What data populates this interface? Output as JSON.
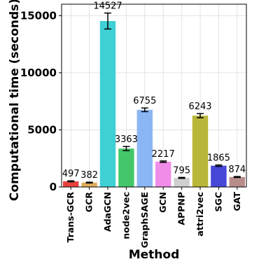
{
  "chart_data": {
    "type": "bar",
    "xlabel": "Method",
    "ylabel": "Computational time (seconds)",
    "ylim": [
      0,
      16000
    ],
    "yticks": [
      0,
      5000,
      10000,
      15000
    ],
    "grid": true,
    "categories": [
      "Trans-GCR",
      "GCR",
      "AdaGCN",
      "node2vec",
      "GraphSAGE",
      "GCN",
      "APPNP",
      "attri2vec",
      "SGC",
      "GAT"
    ],
    "values": [
      497,
      382,
      14527,
      3363,
      6755,
      2217,
      795,
      6243,
      1865,
      874
    ],
    "labels": [
      "497",
      "382",
      "14527",
      "3363",
      "6755",
      "2217",
      "795",
      "6243",
      "1865",
      "874"
    ],
    "errors": [
      40,
      35,
      700,
      180,
      160,
      60,
      40,
      180,
      60,
      40
    ],
    "colors": [
      "#e8423f",
      "#dfae5a",
      "#3fd0d4",
      "#44c76a",
      "#8bb6f4",
      "#f08de8",
      "#cfcfcf",
      "#b9b739",
      "#4747d8",
      "#b98c8c"
    ]
  }
}
